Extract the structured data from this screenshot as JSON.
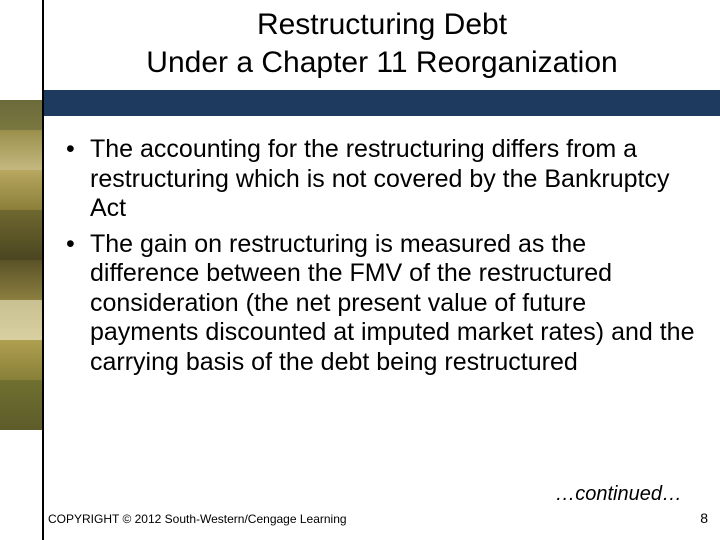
{
  "title": {
    "line1": "Restructuring Debt",
    "line2": "Under a Chapter 11 Reorganization"
  },
  "bullets": [
    "The accounting for the restructuring differs from a restructuring which is not covered by the Bankruptcy Act",
    "The gain on restructuring is measured as the difference between the FMV of the restructured consideration (the net present value of future payments discounted at imputed market rates) and the carrying basis of the debt being restructured"
  ],
  "continued": "…continued…",
  "copyright": "COPYRIGHT © 2012 South-Western/Cengage Learning",
  "page_number": "8",
  "colors": {
    "hr_bar": "#1f3a5f",
    "text": "#000000",
    "background": "#ffffff"
  }
}
